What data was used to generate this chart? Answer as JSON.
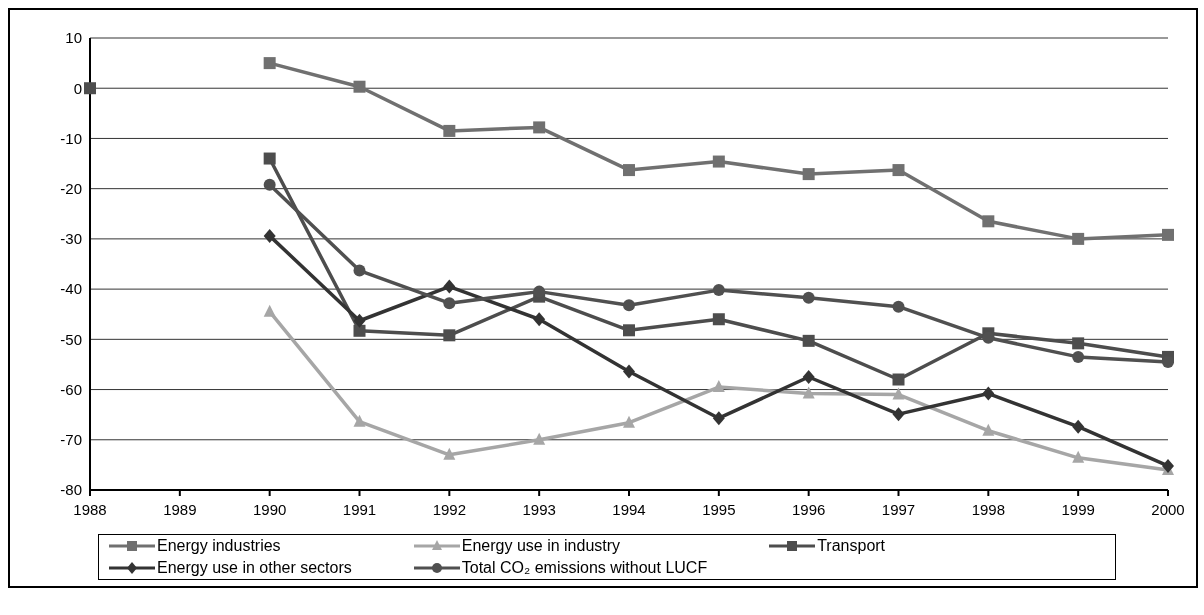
{
  "chart_data": {
    "type": "line",
    "x": [
      1988,
      1989,
      1990,
      1991,
      1992,
      1993,
      1994,
      1995,
      1996,
      1997,
      1998,
      1999,
      2000
    ],
    "series": [
      {
        "name": "Energy industries",
        "color": "#707070",
        "marker": "square",
        "values": [
          null,
          null,
          5,
          0.3,
          -8.5,
          -7.8,
          -16.3,
          -14.6,
          -17.1,
          -16.3,
          -26.5,
          -30,
          -29.2
        ]
      },
      {
        "name": "Energy use in industry",
        "color": "#a6a6a6",
        "marker": "triangle",
        "values": [
          null,
          null,
          -44.5,
          -66.4,
          -73,
          -70,
          -66.6,
          -59.5,
          -60.8,
          -61,
          -68.2,
          -73.6,
          -76
        ]
      },
      {
        "name": "Transport",
        "color": "#4d4d4d",
        "marker": "square",
        "values": [
          0,
          null,
          -14,
          -48.3,
          -49.2,
          -41.5,
          -48.2,
          -46,
          -50.3,
          -58,
          -48.8,
          -50.8,
          -53.5
        ]
      },
      {
        "name": "Energy use in other sectors",
        "color": "#333333",
        "marker": "diamond",
        "values": [
          null,
          null,
          -29.4,
          -46.3,
          -39.5,
          -46,
          -56.4,
          -65.7,
          -57.5,
          -64.9,
          -60.8,
          -67.4,
          -75.2
        ]
      },
      {
        "name": "Total CO₂ emissions without LUCF",
        "color": "#505050",
        "marker": "circle",
        "values": [
          null,
          null,
          -19.2,
          -36.3,
          -42.8,
          -40.5,
          -43.2,
          -40.2,
          -41.7,
          -43.5,
          -49.7,
          -53.5,
          -54.5
        ]
      }
    ],
    "xlim": [
      1988,
      2000
    ],
    "xticks": [
      1988,
      1989,
      1990,
      1991,
      1992,
      1993,
      1994,
      1995,
      1996,
      1997,
      1998,
      1999,
      2000
    ],
    "ylim": [
      -80,
      10
    ],
    "yticks": [
      -80,
      -70,
      -60,
      -50,
      -40,
      -30,
      -20,
      -10,
      0,
      10
    ],
    "grid": "y",
    "legend": "bottom",
    "line_style": "solid"
  }
}
